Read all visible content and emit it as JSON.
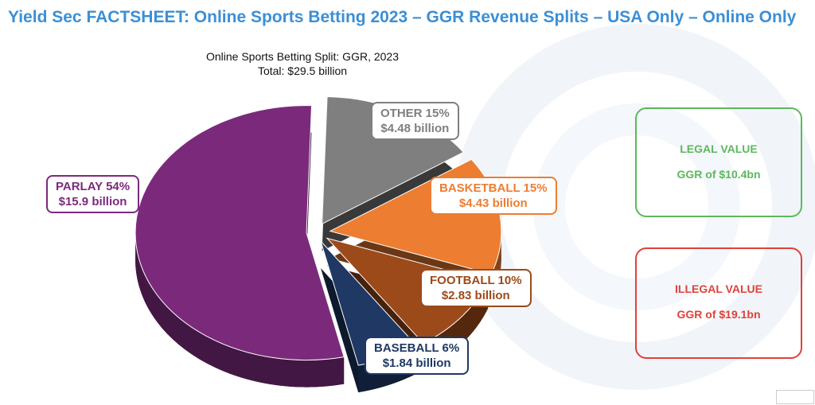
{
  "title": "Yield Sec FACTSHEET: Online Sports Betting 2023 – GGR Revenue Splits – USA Only – Online Only",
  "chart_data": {
    "type": "pie",
    "title": "Online Sports Betting Split: GGR, 2023",
    "subtitle": "Total: $29.5 billion",
    "slices": [
      {
        "name": "OTHER",
        "percent": 15,
        "value_label": "$4.48 billion",
        "value": 4.48,
        "color": "#7f7f7f"
      },
      {
        "name": "BASKETBALL",
        "percent": 15,
        "value_label": "$4.43 billion",
        "value": 4.43,
        "color": "#ed7d31"
      },
      {
        "name": "FOOTBALL",
        "percent": 10,
        "value_label": "$2.83 billion",
        "value": 2.83,
        "color": "#9c4a1a"
      },
      {
        "name": "BASEBALL",
        "percent": 6,
        "value_label": "$1.84 billion",
        "value": 1.84,
        "color": "#1f3864"
      },
      {
        "name": "PARLAY",
        "percent": 54,
        "value_label": "$15.9 billion",
        "value": 15.9,
        "color": "#7b2a7b"
      }
    ],
    "labels": {
      "other": "OTHER 15%",
      "basketball": "BASKETBALL 15%",
      "football": "FOOTBALL 10%",
      "baseball": "BASEBALL 6%",
      "parlay": "PARLAY 54%"
    }
  },
  "legal": {
    "title": "LEGAL VALUE",
    "value": "GGR of $10.4bn",
    "color": "#5cb85c"
  },
  "illegal": {
    "title": "ILLEGAL VALUE",
    "value": "GGR of $19.1bn",
    "color": "#e0413a"
  }
}
